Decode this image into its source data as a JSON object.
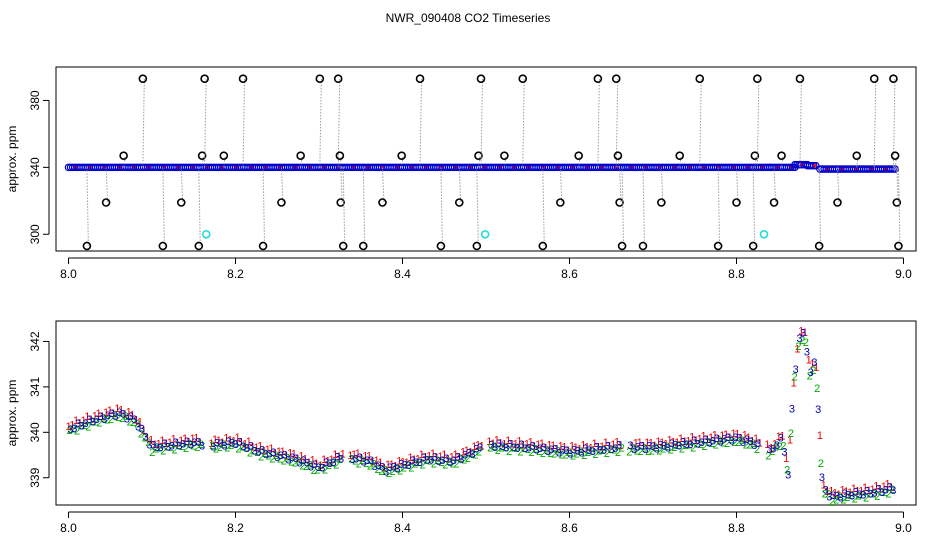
{
  "title": "NWR_090408  CO2 Timeseries",
  "chart_data": [
    {
      "type": "scatter",
      "ylabel": "approx. ppm",
      "xlim": [
        7.985,
        9.015
      ],
      "ylim": [
        290,
        400
      ],
      "x_ticks": [
        "8.0",
        "8.2",
        "8.4",
        "8.6",
        "8.8",
        "9.0"
      ],
      "x_tick_values": [
        8.0,
        8.2,
        8.4,
        8.6,
        8.8,
        9.0
      ],
      "y_ticks": [
        "300",
        "340",
        "380"
      ],
      "y_tick_values": [
        300,
        340,
        380
      ],
      "grid": false,
      "baseline_segments": [
        {
          "x": [
            8.0,
            8.84
          ],
          "y": [
            340,
            340
          ]
        },
        {
          "x": [
            8.84,
            8.87
          ],
          "y": [
            340,
            340
          ]
        },
        {
          "x": [
            8.87,
            8.885
          ],
          "y": [
            341.6,
            341.6
          ]
        },
        {
          "x": [
            8.885,
            8.895
          ],
          "y": [
            341,
            341
          ]
        },
        {
          "x": [
            8.9,
            8.99
          ],
          "y": [
            339,
            339
          ]
        }
      ],
      "spikes": [
        {
          "x": 8.022,
          "y": 293
        },
        {
          "x": 8.045,
          "y": 319
        },
        {
          "x": 8.066,
          "y": 347
        },
        {
          "x": 8.089,
          "y": 393
        },
        {
          "x": 8.113,
          "y": 293
        },
        {
          "x": 8.135,
          "y": 319
        },
        {
          "x": 8.156,
          "y": 293
        },
        {
          "x": 8.16,
          "y": 347
        },
        {
          "x": 8.163,
          "y": 393
        },
        {
          "x": 8.186,
          "y": 347
        },
        {
          "x": 8.209,
          "y": 393
        },
        {
          "x": 8.233,
          "y": 293
        },
        {
          "x": 8.255,
          "y": 319
        },
        {
          "x": 8.278,
          "y": 347
        },
        {
          "x": 8.301,
          "y": 393
        },
        {
          "x": 8.323,
          "y": 393
        },
        {
          "x": 8.325,
          "y": 347
        },
        {
          "x": 8.326,
          "y": 319
        },
        {
          "x": 8.329,
          "y": 293
        },
        {
          "x": 8.353,
          "y": 293
        },
        {
          "x": 8.376,
          "y": 319
        },
        {
          "x": 8.399,
          "y": 347
        },
        {
          "x": 8.421,
          "y": 393
        },
        {
          "x": 8.446,
          "y": 293
        },
        {
          "x": 8.468,
          "y": 319
        },
        {
          "x": 8.489,
          "y": 293
        },
        {
          "x": 8.491,
          "y": 347
        },
        {
          "x": 8.494,
          "y": 393
        },
        {
          "x": 8.522,
          "y": 347
        },
        {
          "x": 8.544,
          "y": 393
        },
        {
          "x": 8.568,
          "y": 293
        },
        {
          "x": 8.589,
          "y": 319
        },
        {
          "x": 8.611,
          "y": 347
        },
        {
          "x": 8.634,
          "y": 393
        },
        {
          "x": 8.656,
          "y": 393
        },
        {
          "x": 8.658,
          "y": 347
        },
        {
          "x": 8.66,
          "y": 319
        },
        {
          "x": 8.663,
          "y": 293
        },
        {
          "x": 8.688,
          "y": 293
        },
        {
          "x": 8.71,
          "y": 319
        },
        {
          "x": 8.732,
          "y": 347
        },
        {
          "x": 8.756,
          "y": 393
        },
        {
          "x": 8.778,
          "y": 293
        },
        {
          "x": 8.8,
          "y": 319
        },
        {
          "x": 8.82,
          "y": 293
        },
        {
          "x": 8.822,
          "y": 347
        },
        {
          "x": 8.825,
          "y": 393
        },
        {
          "x": 8.845,
          "y": 319
        },
        {
          "x": 8.854,
          "y": 347
        },
        {
          "x": 8.876,
          "y": 393
        },
        {
          "x": 8.899,
          "y": 293
        },
        {
          "x": 8.921,
          "y": 319
        },
        {
          "x": 8.944,
          "y": 347
        },
        {
          "x": 8.965,
          "y": 393
        },
        {
          "x": 8.988,
          "y": 393
        },
        {
          "x": 8.99,
          "y": 347
        },
        {
          "x": 8.992,
          "y": 319
        },
        {
          "x": 8.994,
          "y": 293
        }
      ],
      "cyan_points": [
        {
          "x": 8.165,
          "y": 300
        },
        {
          "x": 8.499,
          "y": 300
        },
        {
          "x": 8.833,
          "y": 300
        }
      ],
      "colors": {
        "baseline": "#0000cc",
        "baseline_accent": "#ff0000",
        "spike": "#000000",
        "spike_line": "#9a9a9a",
        "cyan": "#22dddd",
        "green": "#00aa00"
      }
    },
    {
      "type": "line",
      "ylabel": "approx. ppm",
      "xlim": [
        7.985,
        9.015
      ],
      "ylim": [
        338.4,
        342.45
      ],
      "x_ticks": [
        "8.0",
        "8.2",
        "8.4",
        "8.6",
        "8.8",
        "9.0"
      ],
      "x_tick_values": [
        8.0,
        8.2,
        8.4,
        8.6,
        8.8,
        9.0
      ],
      "y_ticks": [
        "339",
        "340",
        "341",
        "342"
      ],
      "y_tick_values": [
        339,
        340,
        341,
        342
      ],
      "grid": false,
      "point_labels": [
        "1",
        "2",
        "3"
      ],
      "series": [
        {
          "label": "1",
          "color": "#ee0000",
          "offset": 0.06,
          "x": [
            8.0,
            8.03,
            8.06,
            8.08,
            8.1,
            8.15,
            8.17,
            8.2,
            8.23,
            8.27,
            8.3,
            8.33,
            8.36,
            8.38,
            8.4,
            8.43,
            8.46,
            8.48,
            8.5,
            8.55,
            8.6,
            8.63,
            8.66,
            8.7,
            8.75,
            8.8,
            8.82,
            8.84,
            8.855,
            8.862,
            8.868,
            8.875,
            8.882,
            8.888,
            8.895,
            8.903,
            8.915,
            8.93,
            8.96,
            8.99
          ],
          "y": [
            340.1,
            340.3,
            340.45,
            340.3,
            339.7,
            339.8,
            339.75,
            339.8,
            339.6,
            339.45,
            339.25,
            339.5,
            339.4,
            339.2,
            339.3,
            339.45,
            339.4,
            339.55,
            339.75,
            339.7,
            339.6,
            339.65,
            339.7,
            339.7,
            339.8,
            339.9,
            339.8,
            339.6,
            339.9,
            339.1,
            341.0,
            342.1,
            342.2,
            341.3,
            341.6,
            338.8,
            338.6,
            338.65,
            338.7,
            338.8
          ]
        },
        {
          "label": "2",
          "color": "#00aa00",
          "offset": -0.08,
          "x": [
            8.0,
            8.03,
            8.06,
            8.08,
            8.1,
            8.15,
            8.17,
            8.2,
            8.23,
            8.27,
            8.3,
            8.33,
            8.36,
            8.38,
            8.4,
            8.43,
            8.46,
            8.48,
            8.5,
            8.55,
            8.6,
            8.63,
            8.66,
            8.7,
            8.75,
            8.8,
            8.82,
            8.84,
            8.855,
            8.862,
            8.868,
            8.875,
            8.882,
            8.888,
            8.895,
            8.903,
            8.915,
            8.93,
            8.96,
            8.99
          ],
          "y": [
            340.1,
            340.3,
            340.45,
            340.3,
            339.7,
            339.8,
            339.75,
            339.8,
            339.6,
            339.45,
            339.25,
            339.5,
            339.4,
            339.2,
            339.3,
            339.45,
            339.4,
            339.55,
            339.75,
            339.7,
            339.6,
            339.65,
            339.7,
            339.7,
            339.8,
            339.9,
            339.8,
            339.6,
            339.9,
            339.1,
            341.0,
            342.1,
            342.2,
            341.3,
            341.6,
            338.8,
            338.6,
            338.65,
            338.7,
            338.8
          ]
        },
        {
          "label": "3",
          "color": "#0000bb",
          "offset": -0.02,
          "x": [
            8.0,
            8.03,
            8.06,
            8.08,
            8.1,
            8.15,
            8.17,
            8.2,
            8.23,
            8.27,
            8.3,
            8.33,
            8.36,
            8.38,
            8.4,
            8.43,
            8.46,
            8.48,
            8.5,
            8.55,
            8.6,
            8.63,
            8.66,
            8.7,
            8.75,
            8.8,
            8.82,
            8.84,
            8.855,
            8.862,
            8.868,
            8.875,
            8.882,
            8.888,
            8.895,
            8.903,
            8.915,
            8.93,
            8.96,
            8.99
          ],
          "y": [
            340.1,
            340.3,
            340.45,
            340.3,
            339.7,
            339.8,
            339.75,
            339.8,
            339.6,
            339.45,
            339.25,
            339.5,
            339.4,
            339.2,
            339.3,
            339.45,
            339.4,
            339.55,
            339.75,
            339.7,
            339.6,
            339.65,
            339.7,
            339.7,
            339.8,
            339.9,
            339.8,
            339.6,
            339.9,
            339.1,
            341.0,
            342.1,
            342.2,
            341.3,
            341.6,
            338.8,
            338.6,
            338.65,
            338.7,
            338.8
          ]
        }
      ],
      "gaps": [
        8.165,
        8.333,
        8.5,
        8.667,
        8.833
      ]
    }
  ]
}
